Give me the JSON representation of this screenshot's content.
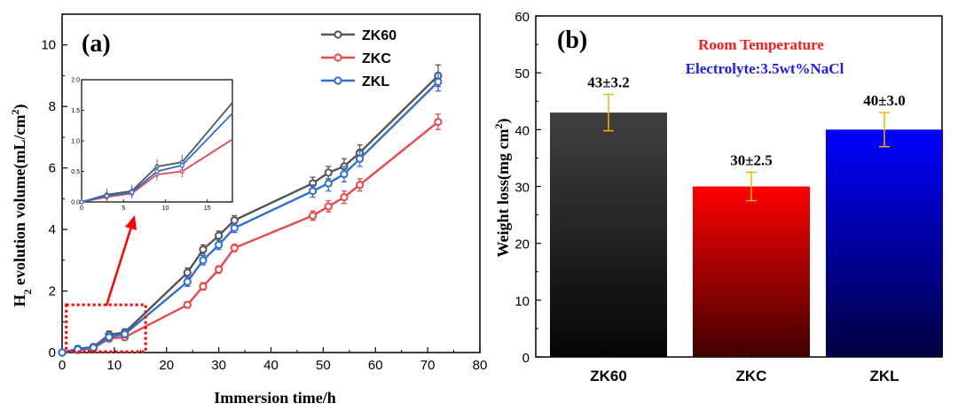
{
  "chart_data": [
    {
      "panel_label": "(a)",
      "type": "line",
      "xlabel": "Immersion time/h",
      "ylabel_prefix": "H",
      "ylabel_sub": "2",
      "ylabel_mid": " evolution volume(mL/cm",
      "ylabel_sup": "2",
      "ylabel_suffix": ")",
      "xlim": [
        0,
        80
      ],
      "ylim": [
        0,
        11
      ],
      "xticks": [
        "0",
        "10",
        "20",
        "30",
        "40",
        "50",
        "60",
        "70",
        "80"
      ],
      "yticks": [
        "0",
        "2",
        "4",
        "6",
        "8",
        "10"
      ],
      "x": [
        0,
        3,
        6,
        9,
        12,
        24,
        27,
        30,
        33,
        48,
        51,
        54,
        57,
        72
      ],
      "series": [
        {
          "name": "ZK60",
          "color": "#555555",
          "values": [
            0,
            0.12,
            0.18,
            0.58,
            0.65,
            2.6,
            3.35,
            3.8,
            4.3,
            5.5,
            5.85,
            6.05,
            6.5,
            9.0
          ],
          "errors": [
            0.05,
            0.1,
            0.1,
            0.12,
            0.12,
            0.15,
            0.15,
            0.15,
            0.15,
            0.2,
            0.2,
            0.25,
            0.25,
            0.35
          ]
        },
        {
          "name": "ZKC",
          "color": "#e8484a",
          "values": [
            0,
            0.08,
            0.14,
            0.45,
            0.5,
            1.55,
            2.15,
            2.7,
            3.4,
            4.45,
            4.75,
            5.05,
            5.45,
            7.5
          ],
          "errors": [
            0.05,
            0.08,
            0.08,
            0.1,
            0.1,
            0.1,
            0.12,
            0.12,
            0.12,
            0.15,
            0.18,
            0.2,
            0.2,
            0.25
          ]
        },
        {
          "name": "ZKL",
          "color": "#2f6fd0",
          "values": [
            0,
            0.1,
            0.16,
            0.5,
            0.6,
            2.3,
            3.0,
            3.5,
            4.05,
            5.25,
            5.5,
            5.8,
            6.3,
            8.8
          ],
          "errors": [
            0.05,
            0.1,
            0.1,
            0.12,
            0.12,
            0.15,
            0.15,
            0.15,
            0.15,
            0.2,
            0.25,
            0.25,
            0.25,
            0.3
          ]
        }
      ],
      "inset": {
        "xlim": [
          0,
          18
        ],
        "ylim": [
          0,
          2.0
        ],
        "xticks": [
          "0",
          "5",
          "10",
          "15"
        ],
        "yticks": [
          "0.0",
          "0.5",
          "1.0",
          "1.5",
          "2.0"
        ]
      }
    },
    {
      "panel_label": "(b)",
      "type": "bar",
      "ylabel": "Weight loss(mg cm",
      "ylabel_sup": "2",
      "ylabel_suffix": ")",
      "ylim": [
        0,
        60
      ],
      "yticks": [
        "0",
        "10",
        "20",
        "30",
        "40",
        "50",
        "60"
      ],
      "categories": [
        "ZK60",
        "ZKC",
        "ZKL"
      ],
      "values": [
        43,
        30,
        40
      ],
      "errors": [
        3.2,
        2.5,
        3.0
      ],
      "value_labels": [
        "43±3.2",
        "30±2.5",
        "40±3.0"
      ],
      "bar_colors": [
        "#3a3a3a",
        "#ff0000",
        "#0000ff"
      ],
      "annotations": [
        {
          "text": "Room Temperature",
          "color": "#ff1a1a"
        },
        {
          "text": "Electrolyte:3.5wt%NaCl",
          "color": "#1a1aff"
        }
      ]
    }
  ]
}
